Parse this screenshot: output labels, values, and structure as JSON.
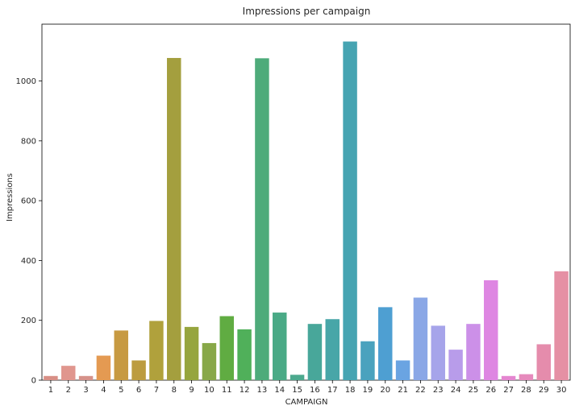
{
  "chart_data": {
    "type": "bar",
    "title": "Impressions per campaign",
    "xlabel": "CAMPAIGN",
    "ylabel": "Impressions",
    "categories": [
      "1",
      "2",
      "3",
      "4",
      "5",
      "6",
      "7",
      "8",
      "9",
      "10",
      "11",
      "12",
      "13",
      "14",
      "15",
      "16",
      "17",
      "18",
      "19",
      "20",
      "21",
      "22",
      "23",
      "24",
      "25",
      "26",
      "27",
      "28",
      "29",
      "30"
    ],
    "values": [
      14,
      48,
      14,
      82,
      166,
      66,
      198,
      1077,
      178,
      124,
      214,
      170,
      1076,
      226,
      18,
      188,
      204,
      1132,
      130,
      244,
      66,
      276,
      182,
      102,
      188,
      334,
      14,
      20,
      120,
      364
    ],
    "colors": [
      "#d88f86",
      "#e0968e",
      "#d6928a",
      "#e49a52",
      "#c79a42",
      "#bc9c40",
      "#b0a13c",
      "#a49f3e",
      "#96a53e",
      "#88a848",
      "#60ac42",
      "#50b05a",
      "#4eab7a",
      "#4aaa86",
      "#4ca98e",
      "#48a79a",
      "#48a6a8",
      "#46a4b2",
      "#4aa2be",
      "#4e9fd2",
      "#6aa4e2",
      "#8aa7e6",
      "#a6a4ea",
      "#b89cea",
      "#cc90e8",
      "#de86e2",
      "#e486d0",
      "#e68abc",
      "#e58cac",
      "#e590a4"
    ],
    "ylim": [
      0,
      1190
    ],
    "yticks": [
      0,
      200,
      400,
      600,
      800,
      1000
    ],
    "grid": false,
    "legend": "none"
  }
}
